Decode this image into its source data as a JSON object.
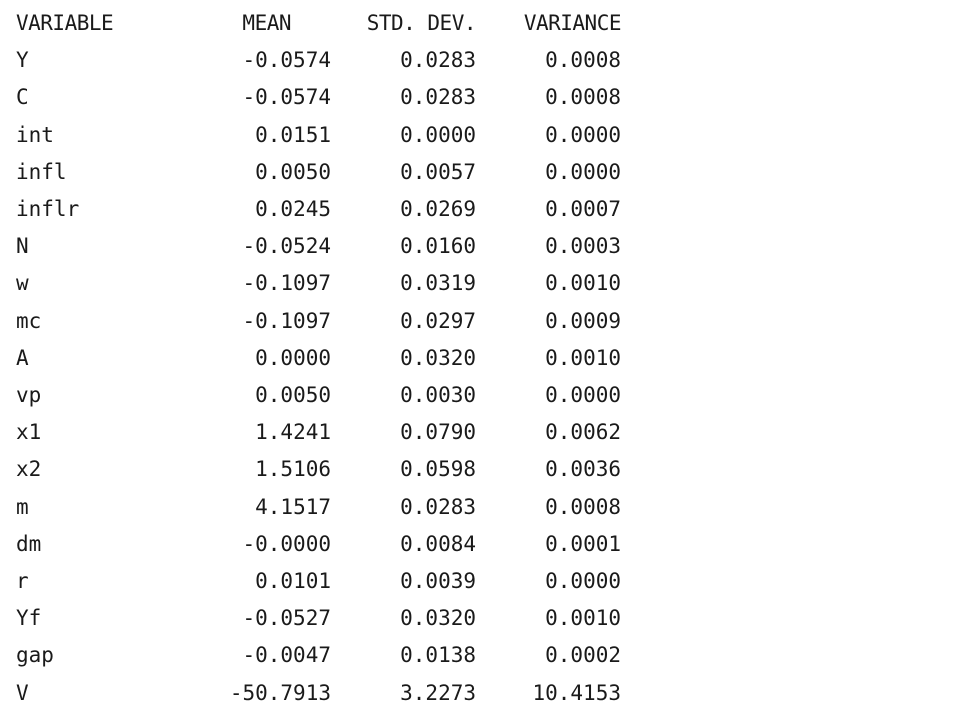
{
  "table": {
    "headers": {
      "variable": "VARIABLE",
      "mean": "MEAN",
      "std_dev": "STD. DEV.",
      "variance": "VARIANCE"
    },
    "rows": [
      {
        "variable": "Y",
        "mean": "-0.0574",
        "std_dev": "0.0283",
        "variance": "0.0008"
      },
      {
        "variable": "C",
        "mean": "-0.0574",
        "std_dev": "0.0283",
        "variance": "0.0008"
      },
      {
        "variable": "int",
        "mean": "0.0151",
        "std_dev": "0.0000",
        "variance": "0.0000"
      },
      {
        "variable": "infl",
        "mean": "0.0050",
        "std_dev": "0.0057",
        "variance": "0.0000"
      },
      {
        "variable": "inflr",
        "mean": "0.0245",
        "std_dev": "0.0269",
        "variance": "0.0007"
      },
      {
        "variable": "N",
        "mean": "-0.0524",
        "std_dev": "0.0160",
        "variance": "0.0003"
      },
      {
        "variable": "w",
        "mean": "-0.1097",
        "std_dev": "0.0319",
        "variance": "0.0010"
      },
      {
        "variable": "mc",
        "mean": "-0.1097",
        "std_dev": "0.0297",
        "variance": "0.0009"
      },
      {
        "variable": "A",
        "mean": "0.0000",
        "std_dev": "0.0320",
        "variance": "0.0010"
      },
      {
        "variable": "vp",
        "mean": "0.0050",
        "std_dev": "0.0030",
        "variance": "0.0000"
      },
      {
        "variable": "x1",
        "mean": "1.4241",
        "std_dev": "0.0790",
        "variance": "0.0062"
      },
      {
        "variable": "x2",
        "mean": "1.5106",
        "std_dev": "0.0598",
        "variance": "0.0036"
      },
      {
        "variable": "m",
        "mean": "4.1517",
        "std_dev": "0.0283",
        "variance": "0.0008"
      },
      {
        "variable": "dm",
        "mean": "-0.0000",
        "std_dev": "0.0084",
        "variance": "0.0001"
      },
      {
        "variable": "r",
        "mean": "0.0101",
        "std_dev": "0.0039",
        "variance": "0.0000"
      },
      {
        "variable": "Yf",
        "mean": "-0.0527",
        "std_dev": "0.0320",
        "variance": "0.0010"
      },
      {
        "variable": "gap",
        "mean": "-0.0047",
        "std_dev": "0.0138",
        "variance": "0.0002"
      },
      {
        "variable": "V",
        "mean": "-50.7913",
        "std_dev": "3.2273",
        "variance": "10.4153"
      }
    ]
  }
}
